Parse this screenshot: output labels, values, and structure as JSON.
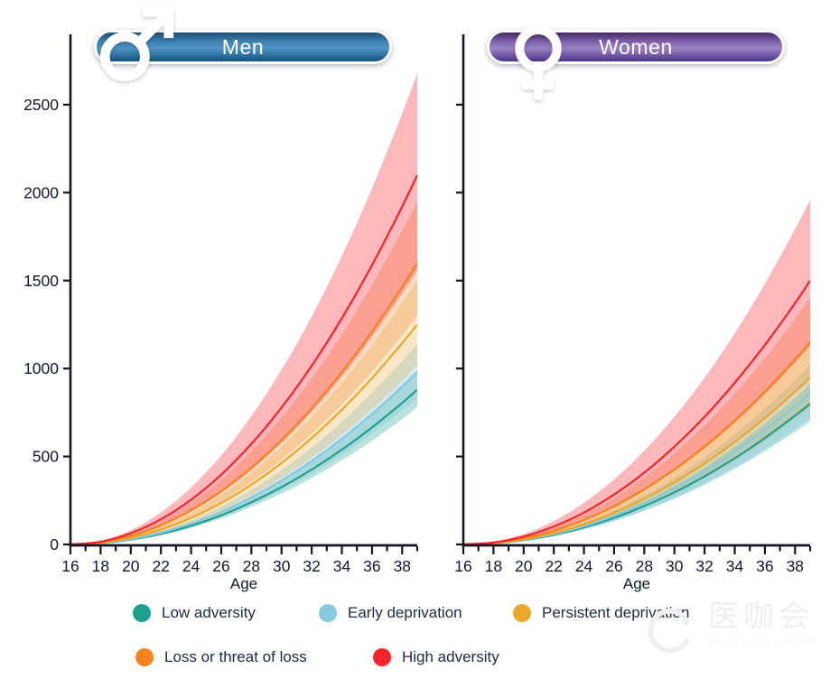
{
  "headers": [
    {
      "label": "Men",
      "icon": "male",
      "gradient": [
        "#1c4e74",
        "#3d81b2",
        "#4d93c3",
        "#11537f"
      ]
    },
    {
      "label": "Women",
      "icon": "female",
      "gradient": [
        "#432a66",
        "#7e62ad",
        "#9b82c4",
        "#4e3487"
      ]
    }
  ],
  "chart_data": [
    {
      "type": "line",
      "title": "Men",
      "xlabel": "Age",
      "ylabel": "",
      "x": [
        16,
        18,
        20,
        22,
        24,
        26,
        28,
        30,
        32,
        34,
        36,
        38,
        39
      ],
      "xlim": [
        16,
        39
      ],
      "ylim": [
        0,
        2900
      ],
      "x_major_ticks": [
        16,
        18,
        20,
        22,
        24,
        26,
        28,
        30,
        32,
        34,
        36,
        38
      ],
      "y_ticks": [
        0,
        500,
        1000,
        1500,
        2000,
        2500
      ],
      "show_y_tick_labels": true,
      "grid": false,
      "band_note": "shaded confidence band around each mean curve",
      "series": [
        {
          "name": "Low adversity",
          "color": "#1fa08e",
          "band_opacity": 0.3,
          "mean": [
            0,
            7,
            27,
            60,
            106,
            166,
            240,
            326,
            426,
            539,
            665,
            805,
            880
          ],
          "lower": [
            0,
            6,
            24,
            53,
            94,
            147,
            213,
            289,
            377,
            478,
            589,
            713,
            780
          ],
          "upper": [
            0,
            8,
            30,
            68,
            119,
            187,
            270,
            367,
            479,
            606,
            748,
            906,
            990
          ]
        },
        {
          "name": "Early deprivation",
          "color": "#85c9de",
          "band_opacity": 0.38,
          "mean": [
            0,
            7,
            30,
            67,
            119,
            185,
            267,
            363,
            474,
            600,
            741,
            897,
            980
          ],
          "lower": [
            0,
            6,
            25,
            57,
            101,
            157,
            226,
            307,
            401,
            508,
            628,
            760,
            830
          ],
          "upper": [
            0,
            9,
            35,
            78,
            138,
            215,
            310,
            422,
            551,
            698,
            862,
            1043,
            1140
          ]
        },
        {
          "name": "Persistent deprivation",
          "color": "#e9a82a",
          "band_opacity": 0.26,
          "mean": [
            0,
            9,
            38,
            85,
            151,
            236,
            340,
            463,
            605,
            766,
            945,
            1144,
            1250
          ],
          "lower": [
            0,
            7,
            31,
            69,
            123,
            193,
            278,
            378,
            494,
            625,
            771,
            933,
            1020
          ],
          "upper": [
            0,
            11,
            45,
            102,
            181,
            283,
            408,
            556,
            726,
            919,
            1134,
            1373,
            1500
          ]
        },
        {
          "name": "Loss or threat of loss",
          "color": "#f5821f",
          "band_opacity": 0.28,
          "mean": [
            0,
            12,
            48,
            109,
            194,
            302,
            436,
            593,
            774,
            980,
            1210,
            1464,
            1600
          ],
          "lower": [
            0,
            10,
            39,
            88,
            158,
            245,
            354,
            482,
            629,
            796,
            983,
            1190,
            1300
          ],
          "upper": [
            0,
            15,
            59,
            133,
            236,
            368,
            531,
            723,
            943,
            1194,
            1475,
            1784,
            1950
          ]
        },
        {
          "name": "High adversity",
          "color": "#f8232b",
          "band_opacity": 0.32,
          "mean": [
            0,
            16,
            64,
            143,
            254,
            397,
            572,
            778,
            1016,
            1286,
            1588,
            1921,
            2100
          ],
          "lower": [
            0,
            12,
            47,
            106,
            189,
            295,
            425,
            578,
            755,
            955,
            1180,
            1427,
            1560
          ],
          "upper": [
            0,
            20,
            81,
            182,
            324,
            506,
            730,
            993,
            1296,
            1640,
            2025,
            2450,
            2680
          ]
        }
      ]
    },
    {
      "type": "line",
      "title": "Women",
      "xlabel": "Age",
      "ylabel": "",
      "x": [
        16,
        18,
        20,
        22,
        24,
        26,
        28,
        30,
        32,
        34,
        36,
        38,
        39
      ],
      "xlim": [
        16,
        39
      ],
      "ylim": [
        0,
        2900
      ],
      "x_major_ticks": [
        16,
        18,
        20,
        22,
        24,
        26,
        28,
        30,
        32,
        34,
        36,
        38
      ],
      "y_ticks": [
        0,
        500,
        1000,
        1500,
        2000,
        2500
      ],
      "show_y_tick_labels": false,
      "grid": false,
      "band_note": "shaded confidence band around each mean curve",
      "series": [
        {
          "name": "Low adversity",
          "color": "#1fa08e",
          "band_opacity": 0.3,
          "mean": [
            0,
            6,
            24,
            54,
            97,
            151,
            218,
            296,
            387,
            490,
            605,
            732,
            800
          ],
          "lower": [
            0,
            5,
            21,
            48,
            85,
            132,
            191,
            259,
            339,
            429,
            529,
            640,
            700
          ],
          "upper": [
            0,
            7,
            28,
            62,
            110,
            172,
            248,
            337,
            440,
            557,
            688,
            833,
            910
          ]
        },
        {
          "name": "Early deprivation",
          "color": "#85c9de",
          "band_opacity": 0.38,
          "mean": [
            0,
            7,
            26,
            59,
            104,
            163,
            234,
            319,
            416,
            527,
            650,
            787,
            860
          ],
          "lower": [
            0,
            5,
            22,
            49,
            87,
            136,
            196,
            267,
            348,
            441,
            544,
            659,
            720
          ],
          "upper": [
            0,
            8,
            31,
            69,
            123,
            193,
            278,
            378,
            494,
            625,
            771,
            933,
            1020
          ]
        },
        {
          "name": "Persistent deprivation",
          "color": "#e9a82a",
          "band_opacity": 0.26,
          "mean": [
            0,
            7,
            29,
            65,
            115,
            180,
            259,
            352,
            460,
            582,
            718,
            869,
            950
          ],
          "lower": [
            0,
            6,
            24,
            53,
            94,
            147,
            212,
            289,
            377,
            478,
            590,
            714,
            780
          ],
          "upper": [
            0,
            9,
            35,
            78,
            139,
            217,
            313,
            426,
            557,
            704,
            870,
            1052,
            1150
          ]
        },
        {
          "name": "Loss or threat of loss",
          "color": "#f5821f",
          "band_opacity": 0.28,
          "mean": [
            0,
            9,
            35,
            78,
            139,
            217,
            313,
            426,
            557,
            704,
            870,
            1052,
            1150
          ],
          "lower": [
            0,
            7,
            28,
            64,
            114,
            178,
            256,
            348,
            455,
            576,
            711,
            860,
            940
          ],
          "upper": [
            0,
            11,
            42,
            95,
            169,
            264,
            381,
            519,
            678,
            857,
            1059,
            1281,
            1400
          ]
        },
        {
          "name": "High adversity",
          "color": "#f8232b",
          "band_opacity": 0.32,
          "mean": [
            0,
            11,
            45,
            102,
            181,
            284,
            408,
            556,
            726,
            919,
            1134,
            1372,
            1500
          ],
          "lower": [
            0,
            9,
            34,
            77,
            137,
            214,
            308,
            419,
            547,
            692,
            854,
            1034,
            1130
          ],
          "upper": [
            0,
            15,
            59,
            133,
            237,
            370,
            533,
            726,
            948,
            1200,
            1482,
            1793,
            1960
          ]
        }
      ]
    }
  ],
  "legend": {
    "items": [
      {
        "label": "Low adversity",
        "color": "#1fa08e"
      },
      {
        "label": "Early deprivation",
        "color": "#85c9de"
      },
      {
        "label": "Persistent deprivation",
        "color": "#e9a82a"
      },
      {
        "label": "Loss or threat of loss",
        "color": "#f5821f"
      },
      {
        "label": "High adversity",
        "color": "#f8232b"
      }
    ]
  },
  "watermark": {
    "text": "医咖会",
    "subtext": "MEDIECO GROUP"
  }
}
